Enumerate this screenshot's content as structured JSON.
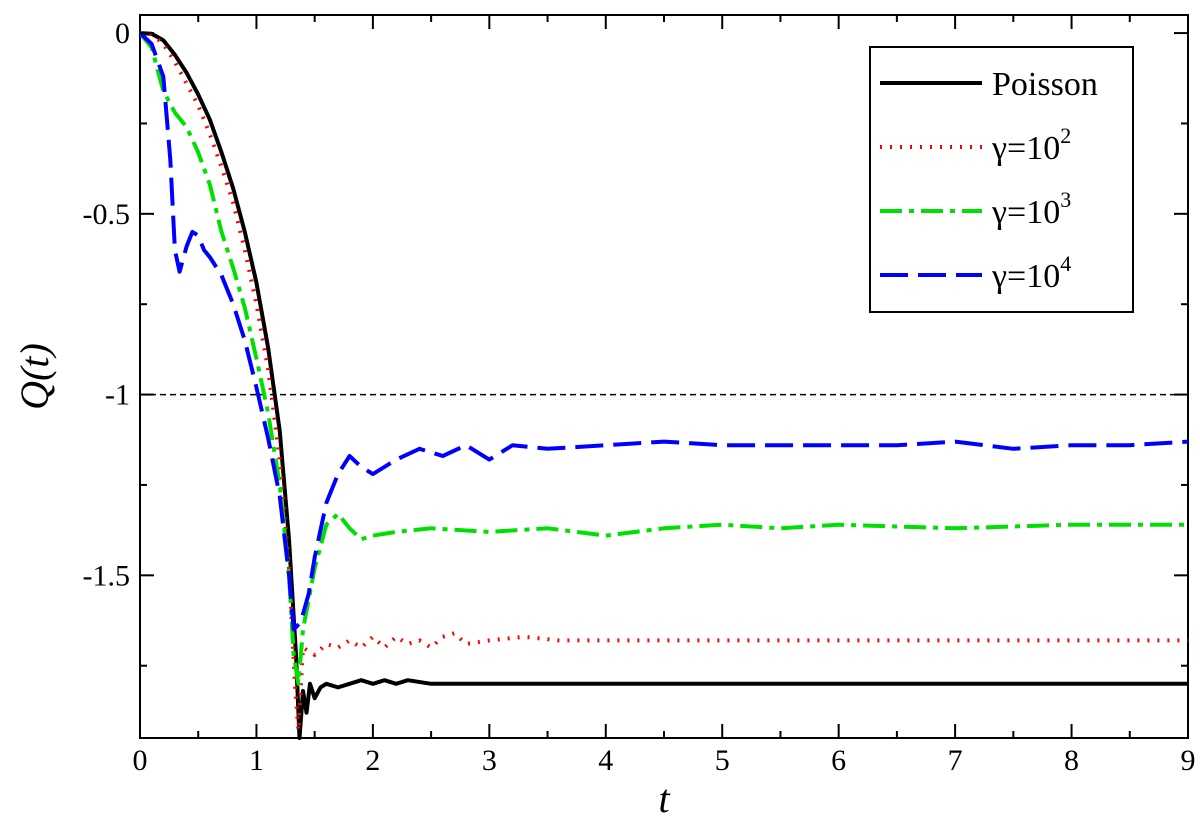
{
  "chart_data": {
    "type": "line",
    "xlabel": "t",
    "ylabel": "Q(t)",
    "xlim": [
      0,
      9
    ],
    "ylim": [
      -1.95,
      0.05
    ],
    "xticks": [
      0,
      1,
      2,
      3,
      4,
      5,
      6,
      7,
      8,
      9
    ],
    "xtick_labels": [
      "0",
      "1",
      "2",
      "3",
      "4",
      "5",
      "6",
      "7",
      "8",
      "9"
    ],
    "yticks": [
      0,
      -0.5,
      -1,
      -1.5
    ],
    "ytick_labels": [
      "0",
      "-0.5",
      "-1",
      "-1.5"
    ],
    "reference_line": {
      "y": -1,
      "style": "dashed",
      "color": "#000000"
    },
    "legend": {
      "placement": "top-right"
    },
    "grid": false,
    "series": [
      {
        "name": "Poisson",
        "legend_base": "Poisson",
        "legend_sup": "",
        "color": "#000000",
        "dash": "none",
        "points": [
          [
            0,
            0
          ],
          [
            0.1,
            -0.002
          ],
          [
            0.2,
            -0.02
          ],
          [
            0.3,
            -0.06
          ],
          [
            0.4,
            -0.11
          ],
          [
            0.5,
            -0.17
          ],
          [
            0.6,
            -0.24
          ],
          [
            0.7,
            -0.33
          ],
          [
            0.8,
            -0.43
          ],
          [
            0.9,
            -0.55
          ],
          [
            1.0,
            -0.69
          ],
          [
            1.1,
            -0.87
          ],
          [
            1.2,
            -1.1
          ],
          [
            1.28,
            -1.4
          ],
          [
            1.34,
            -1.72
          ],
          [
            1.37,
            -1.95
          ],
          [
            1.4,
            -1.82
          ],
          [
            1.43,
            -1.88
          ],
          [
            1.46,
            -1.8
          ],
          [
            1.5,
            -1.84
          ],
          [
            1.55,
            -1.81
          ],
          [
            1.6,
            -1.8
          ],
          [
            1.7,
            -1.81
          ],
          [
            1.8,
            -1.8
          ],
          [
            1.9,
            -1.79
          ],
          [
            2.0,
            -1.8
          ],
          [
            2.1,
            -1.79
          ],
          [
            2.2,
            -1.8
          ],
          [
            2.3,
            -1.79
          ],
          [
            2.5,
            -1.8
          ],
          [
            3,
            -1.8
          ],
          [
            4,
            -1.8
          ],
          [
            5,
            -1.8
          ],
          [
            6,
            -1.8
          ],
          [
            7,
            -1.8
          ],
          [
            8,
            -1.8
          ],
          [
            9,
            -1.8
          ]
        ]
      },
      {
        "name": "γ=10^2",
        "legend_base": "γ=10",
        "legend_sup": "2",
        "color": "#ff0000",
        "dash": "2,8",
        "points": [
          [
            0,
            0
          ],
          [
            0.1,
            -0.003
          ],
          [
            0.2,
            -0.03
          ],
          [
            0.3,
            -0.08
          ],
          [
            0.4,
            -0.14
          ],
          [
            0.5,
            -0.2
          ],
          [
            0.6,
            -0.28
          ],
          [
            0.7,
            -0.37
          ],
          [
            0.8,
            -0.47
          ],
          [
            0.9,
            -0.6
          ],
          [
            1.0,
            -0.75
          ],
          [
            1.1,
            -0.93
          ],
          [
            1.2,
            -1.18
          ],
          [
            1.28,
            -1.48
          ],
          [
            1.33,
            -1.8
          ],
          [
            1.36,
            -1.93
          ],
          [
            1.4,
            -1.7
          ],
          [
            1.5,
            -1.72
          ],
          [
            1.6,
            -1.69
          ],
          [
            1.7,
            -1.7
          ],
          [
            1.8,
            -1.68
          ],
          [
            1.9,
            -1.7
          ],
          [
            2.0,
            -1.67
          ],
          [
            2.1,
            -1.7
          ],
          [
            2.2,
            -1.67
          ],
          [
            2.3,
            -1.69
          ],
          [
            2.4,
            -1.68
          ],
          [
            2.5,
            -1.7
          ],
          [
            2.6,
            -1.67
          ],
          [
            2.7,
            -1.66
          ],
          [
            2.8,
            -1.69
          ],
          [
            3.0,
            -1.68
          ],
          [
            3.3,
            -1.67
          ],
          [
            3.6,
            -1.68
          ],
          [
            4,
            -1.68
          ],
          [
            5,
            -1.68
          ],
          [
            6,
            -1.68
          ],
          [
            7,
            -1.68
          ],
          [
            8,
            -1.68
          ],
          [
            9,
            -1.68
          ]
        ]
      },
      {
        "name": "γ=10^3",
        "legend_base": "γ=10",
        "legend_sup": "3",
        "color": "#00e000",
        "dash": "22,7,5,7",
        "points": [
          [
            0,
            0
          ],
          [
            0.1,
            -0.04
          ],
          [
            0.2,
            -0.16
          ],
          [
            0.3,
            -0.22
          ],
          [
            0.4,
            -0.26
          ],
          [
            0.5,
            -0.33
          ],
          [
            0.6,
            -0.42
          ],
          [
            0.7,
            -0.55
          ],
          [
            0.8,
            -0.65
          ],
          [
            0.9,
            -0.76
          ],
          [
            1.0,
            -0.9
          ],
          [
            1.1,
            -1.05
          ],
          [
            1.2,
            -1.25
          ],
          [
            1.28,
            -1.5
          ],
          [
            1.32,
            -1.72
          ],
          [
            1.36,
            -1.8
          ],
          [
            1.4,
            -1.65
          ],
          [
            1.5,
            -1.48
          ],
          [
            1.6,
            -1.36
          ],
          [
            1.7,
            -1.33
          ],
          [
            1.8,
            -1.37
          ],
          [
            1.9,
            -1.4
          ],
          [
            2.0,
            -1.39
          ],
          [
            2.2,
            -1.38
          ],
          [
            2.5,
            -1.37
          ],
          [
            3,
            -1.38
          ],
          [
            3.5,
            -1.37
          ],
          [
            4,
            -1.39
          ],
          [
            4.5,
            -1.37
          ],
          [
            5,
            -1.36
          ],
          [
            5.5,
            -1.37
          ],
          [
            6,
            -1.36
          ],
          [
            7,
            -1.37
          ],
          [
            8,
            -1.36
          ],
          [
            9,
            -1.36
          ]
        ]
      },
      {
        "name": "γ=10^4",
        "legend_base": "γ=10",
        "legend_sup": "4",
        "color": "#0000ff",
        "dash": "28,10",
        "points": [
          [
            0,
            0
          ],
          [
            0.1,
            -0.03
          ],
          [
            0.2,
            -0.12
          ],
          [
            0.26,
            -0.35
          ],
          [
            0.3,
            -0.6
          ],
          [
            0.34,
            -0.66
          ],
          [
            0.4,
            -0.59
          ],
          [
            0.45,
            -0.55
          ],
          [
            0.5,
            -0.56
          ],
          [
            0.55,
            -0.6
          ],
          [
            0.6,
            -0.62
          ],
          [
            0.7,
            -0.67
          ],
          [
            0.8,
            -0.75
          ],
          [
            0.9,
            -0.85
          ],
          [
            1.0,
            -0.98
          ],
          [
            1.1,
            -1.12
          ],
          [
            1.2,
            -1.28
          ],
          [
            1.28,
            -1.5
          ],
          [
            1.32,
            -1.65
          ],
          [
            1.38,
            -1.63
          ],
          [
            1.45,
            -1.55
          ],
          [
            1.5,
            -1.45
          ],
          [
            1.6,
            -1.3
          ],
          [
            1.7,
            -1.22
          ],
          [
            1.8,
            -1.17
          ],
          [
            1.9,
            -1.2
          ],
          [
            2.0,
            -1.22
          ],
          [
            2.2,
            -1.18
          ],
          [
            2.4,
            -1.15
          ],
          [
            2.6,
            -1.17
          ],
          [
            2.8,
            -1.14
          ],
          [
            3.0,
            -1.18
          ],
          [
            3.2,
            -1.14
          ],
          [
            3.5,
            -1.15
          ],
          [
            4,
            -1.14
          ],
          [
            4.5,
            -1.13
          ],
          [
            5,
            -1.14
          ],
          [
            5.5,
            -1.14
          ],
          [
            6,
            -1.14
          ],
          [
            6.5,
            -1.14
          ],
          [
            7,
            -1.13
          ],
          [
            7.5,
            -1.15
          ],
          [
            8,
            -1.14
          ],
          [
            8.5,
            -1.14
          ],
          [
            9,
            -1.13
          ]
        ]
      }
    ]
  }
}
